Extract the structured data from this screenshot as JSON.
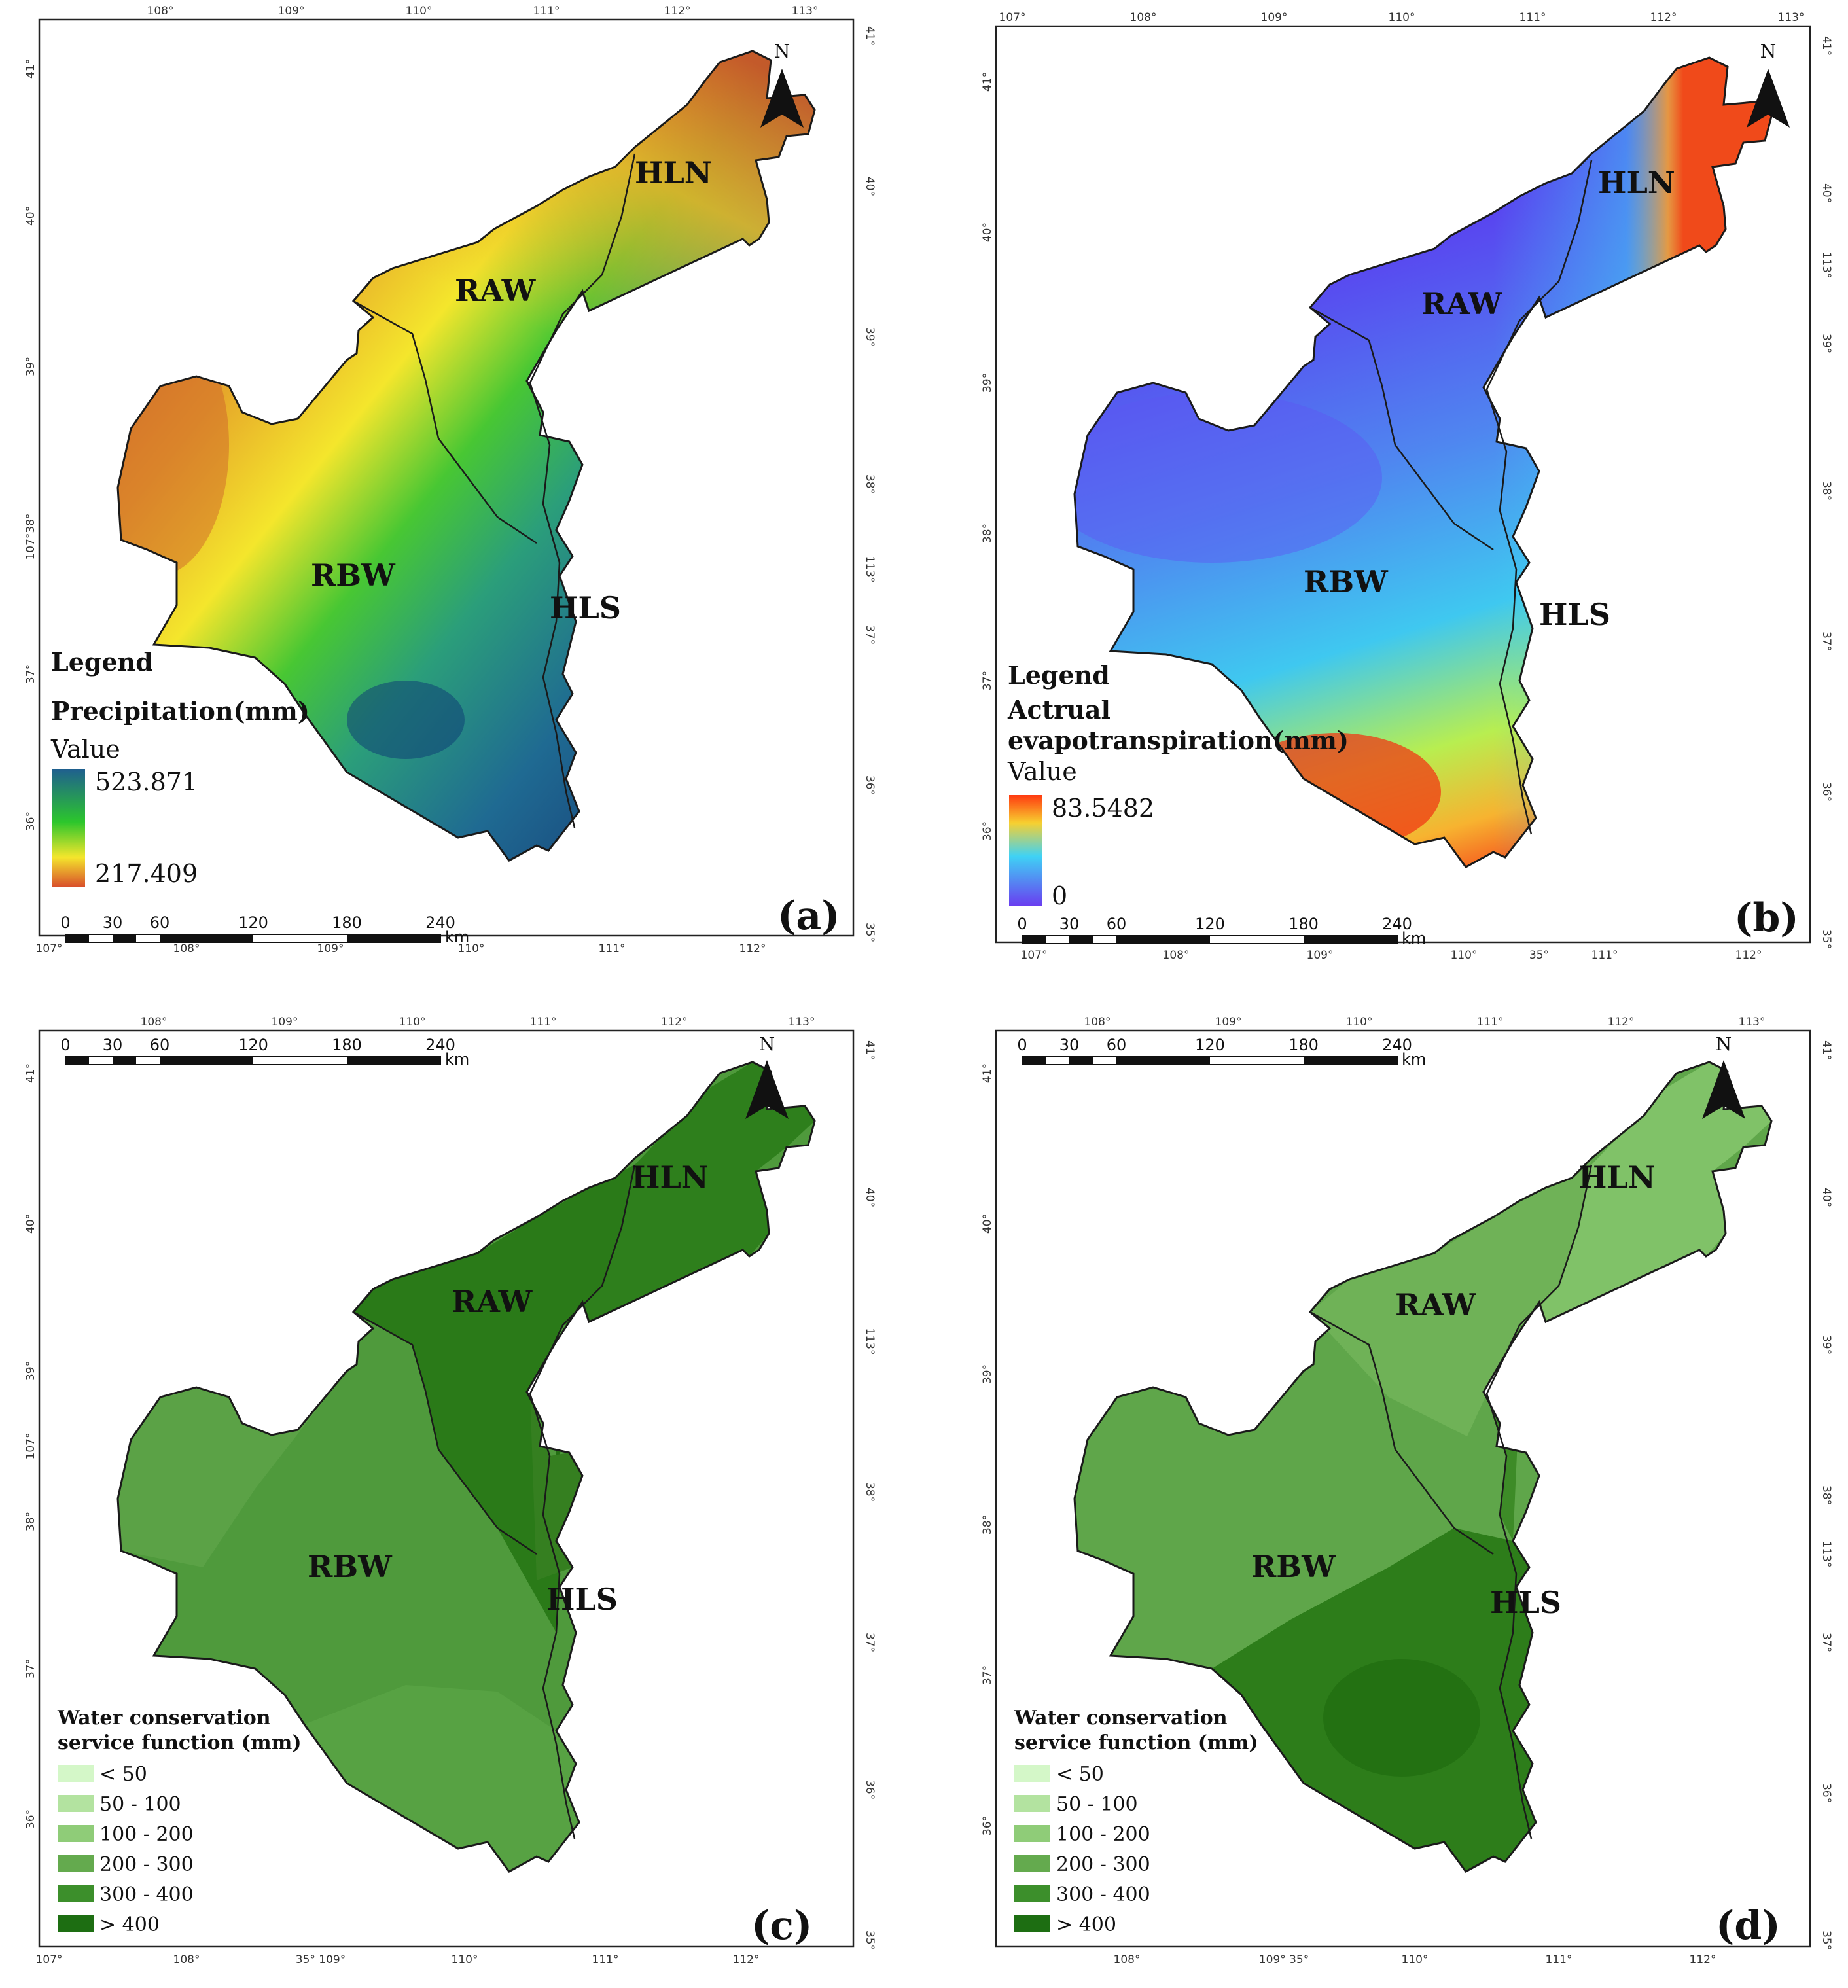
{
  "colors": {
    "precip_high": "#1f5f8f",
    "precip_mid": "#2cc62c",
    "precip_low": "#d9502b",
    "et_high": "#ff3a10",
    "et_mid": "#3fd2f5",
    "et_low": "#6a3cf0",
    "water_classes": [
      "#d4f7c8",
      "#b3e3a0",
      "#8fcc78",
      "#64aa4e",
      "#3c8f2b",
      "#1d6e12"
    ]
  },
  "region_names": [
    "HLN",
    "RAW",
    "RBW",
    "HLS"
  ],
  "north_label": "N",
  "scale_bar": {
    "ticks": [
      "0",
      "30",
      "60",
      "120",
      "180",
      "240"
    ],
    "unit": "km"
  },
  "panels": [
    {
      "id": "a",
      "label": "(a)",
      "lon_ticks_top": [
        "108°",
        "109°",
        "110°",
        "111°",
        "112°",
        "113°"
      ],
      "lon_ticks_bottom": [
        "107°",
        "108°",
        "109°",
        "110°",
        "111°",
        "112°"
      ],
      "lat_ticks_left": [
        "41°",
        "40°",
        "39°",
        "107°38°",
        "37°",
        "36°"
      ],
      "lat_ticks_right": [
        "41°",
        "40°",
        "39°",
        "38°",
        "113°",
        "37°",
        "36°",
        "35°"
      ],
      "legend": {
        "title": "Legend",
        "subtitle": "Precipitation(mm)",
        "value_label": "Value",
        "max": "523.871",
        "min": "217.409"
      }
    },
    {
      "id": "b",
      "label": "(b)",
      "lon_ticks_top": [
        "107°",
        "108°",
        "109°",
        "110°",
        "111°",
        "112°",
        "113°"
      ],
      "lon_ticks_bottom": [
        "107°",
        "108°",
        "109°",
        "110°",
        "35°",
        "111°",
        "112°"
      ],
      "lat_ticks_left": [
        "41°",
        "40°",
        "39°",
        "38°",
        "37°",
        "36°"
      ],
      "lat_ticks_right": [
        "41°",
        "40°",
        "113°",
        "39°",
        "38°",
        "37°",
        "36°",
        "35°"
      ],
      "legend": {
        "title": "Legend",
        "subtitle_line1": "Actrual",
        "subtitle_line2": "evapotranspiration(mm)",
        "value_label": "Value",
        "max": "83.5482",
        "min": "0"
      }
    },
    {
      "id": "c",
      "label": "(c)",
      "lon_ticks_top": [
        "108°",
        "109°",
        "110°",
        "111°",
        "112°",
        "113°"
      ],
      "lon_ticks_bottom": [
        "107°",
        "108°",
        "35° 109°",
        "110°",
        "111°",
        "112°"
      ],
      "lat_ticks_left": [
        "41°",
        "40°",
        "39°",
        "107°",
        "38°",
        "37°",
        "36°"
      ],
      "lat_ticks_right": [
        "41°",
        "40°",
        "113°",
        "38°",
        "37°",
        "36°",
        "35°"
      ],
      "legend": {
        "title_line1": "Water conservation",
        "title_line2": "service function (mm)",
        "classes": [
          "< 50",
          "50 - 100",
          "100 - 200",
          "200 - 300",
          "300 - 400",
          "> 400"
        ]
      }
    },
    {
      "id": "d",
      "label": "(d)",
      "lon_ticks_top": [
        "108°",
        "109°",
        "110°",
        "111°",
        "112°",
        "113°"
      ],
      "lon_ticks_bottom": [
        "108°",
        "109° 35°",
        "110°",
        "111°",
        "112°"
      ],
      "lat_ticks_left": [
        "41°",
        "40°",
        "39°",
        "38°",
        "37°",
        "36°"
      ],
      "lat_ticks_right": [
        "41°",
        "40°",
        "39°",
        "38°",
        "113°",
        "37°",
        "36°",
        "35°"
      ],
      "legend": {
        "title_line1": "Water conservation",
        "title_line2": "service function (mm)",
        "classes": [
          "< 50",
          "50 - 100",
          "100 - 200",
          "200 - 300",
          "300 - 400",
          "> 400"
        ]
      }
    }
  ]
}
